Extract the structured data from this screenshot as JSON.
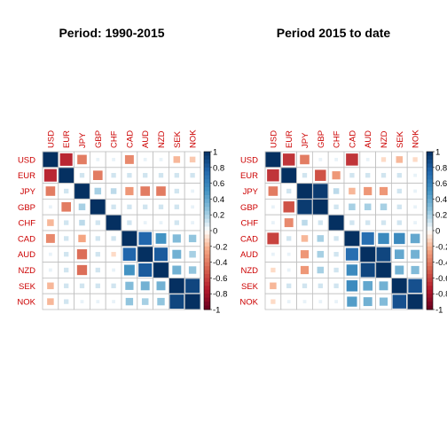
{
  "colors": {
    "positive": "#053061",
    "negative": "#67001f",
    "label": "#cc0000",
    "grid": "#bfbfbf"
  },
  "chart_data": [
    {
      "type": "heatmap",
      "title": "Period: 1990-2015",
      "variables": [
        "USD",
        "EUR",
        "JPY",
        "GBP",
        "CHF",
        "CAD",
        "AUD",
        "NZD",
        "SEK",
        "NOK"
      ],
      "matrix": [
        [
          1.0,
          -0.7,
          -0.4,
          0.05,
          0.05,
          -0.35,
          0.05,
          0.05,
          -0.2,
          -0.15
        ],
        [
          -0.7,
          1.0,
          0.1,
          -0.4,
          0.1,
          0.1,
          0.1,
          0.1,
          0.1,
          0.1
        ],
        [
          -0.4,
          0.1,
          1.0,
          0.2,
          0.15,
          -0.3,
          -0.4,
          -0.4,
          0.1,
          0.05
        ],
        [
          0.05,
          -0.4,
          0.2,
          1.0,
          0.1,
          0.1,
          0.1,
          0.1,
          0.1,
          0.05
        ],
        [
          -0.2,
          0.1,
          0.15,
          0.1,
          1.0,
          0.1,
          0.05,
          0.05,
          0.1,
          0.05
        ],
        [
          -0.35,
          0.1,
          -0.25,
          0.1,
          0.1,
          1.0,
          0.75,
          0.5,
          0.3,
          0.25
        ],
        [
          0.05,
          0.1,
          -0.45,
          0.1,
          -0.1,
          0.75,
          1.0,
          0.8,
          0.35,
          0.2
        ],
        [
          0.05,
          0.1,
          -0.45,
          0.1,
          0.05,
          0.5,
          0.8,
          1.0,
          0.35,
          0.25
        ],
        [
          -0.2,
          0.1,
          0.1,
          0.1,
          0.1,
          0.3,
          0.35,
          0.35,
          1.0,
          0.9
        ],
        [
          -0.2,
          0.1,
          0.05,
          0.05,
          0.05,
          0.25,
          0.2,
          0.25,
          0.9,
          1.0
        ]
      ]
    },
    {
      "type": "heatmap",
      "title": "Period 2015 to date",
      "variables": [
        "USD",
        "EUR",
        "JPY",
        "GBP",
        "CHF",
        "CAD",
        "AUD",
        "NZD",
        "SEK",
        "NOK"
      ],
      "matrix": [
        [
          1.0,
          -0.65,
          -0.4,
          0.05,
          0.05,
          -0.65,
          0.05,
          -0.1,
          -0.2,
          -0.1
        ],
        [
          -0.65,
          1.0,
          0.1,
          -0.55,
          -0.3,
          0.1,
          0.1,
          0.1,
          0.1,
          0.05
        ],
        [
          -0.4,
          0.1,
          1.0,
          0.95,
          0.15,
          -0.2,
          -0.3,
          -0.3,
          0.1,
          0.05
        ],
        [
          0.05,
          -0.55,
          0.95,
          1.0,
          0.1,
          0.2,
          0.2,
          0.2,
          0.1,
          0.05
        ],
        [
          0.05,
          -0.35,
          0.15,
          0.1,
          1.0,
          0.1,
          0.1,
          0.1,
          0.1,
          0.05
        ],
        [
          -0.6,
          0.1,
          -0.2,
          0.2,
          0.1,
          1.0,
          0.7,
          0.55,
          0.55,
          0.4
        ],
        [
          0.05,
          0.05,
          -0.3,
          0.2,
          0.1,
          0.7,
          1.0,
          0.9,
          0.4,
          0.35
        ],
        [
          -0.1,
          0.05,
          -0.3,
          0.2,
          0.1,
          0.55,
          0.9,
          1.0,
          0.35,
          0.3
        ],
        [
          -0.2,
          0.1,
          0.1,
          0.1,
          0.1,
          0.55,
          0.4,
          0.35,
          1.0,
          0.85
        ],
        [
          -0.1,
          0.05,
          0.05,
          0.05,
          0.05,
          0.45,
          0.35,
          0.3,
          0.85,
          1.0
        ]
      ]
    }
  ],
  "colorbar": {
    "ticks": [
      "1",
      "0.8",
      "0.6",
      "0.4",
      "0.2",
      "0",
      "-0.2",
      "-0.4",
      "-0.6",
      "-0.8",
      "-1"
    ]
  }
}
